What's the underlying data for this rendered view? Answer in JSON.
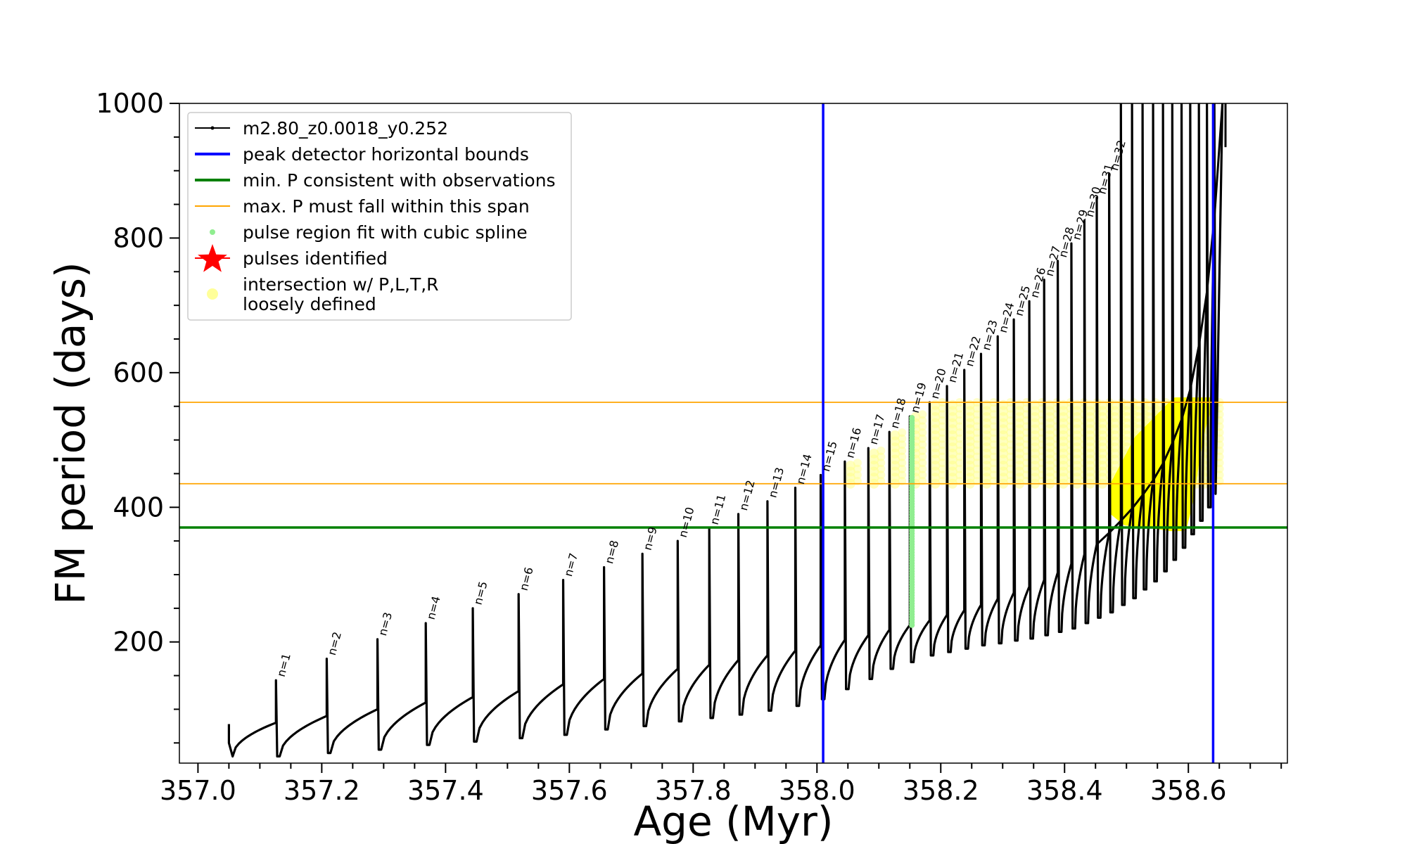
{
  "chart_data": {
    "type": "line",
    "title": "",
    "xlabel": "Age (Myr)",
    "ylabel": "FM period (days)",
    "xlim": [
      356.97,
      358.76
    ],
    "ylim": [
      20,
      1000
    ],
    "x_ticks": [
      357.0,
      357.2,
      357.4,
      357.6,
      357.8,
      358.0,
      358.2,
      358.4,
      358.6
    ],
    "x_tick_labels": [
      "357.0",
      "357.2",
      "357.4",
      "357.6",
      "357.8",
      "358.0",
      "358.2",
      "358.4",
      "358.6"
    ],
    "y_ticks": [
      200,
      400,
      600,
      800,
      1000
    ],
    "y_tick_labels": [
      "200",
      "400",
      "600",
      "800",
      "1000"
    ],
    "grid": false,
    "legend_position": "upper-left",
    "legend": [
      {
        "label": "m2.80_z0.0018_y0.252",
        "kind": "line-marker",
        "color": "#000000"
      },
      {
        "label": "peak detector horizontal bounds",
        "kind": "line",
        "color": "#0000ff"
      },
      {
        "label": "min. P consistent with observations",
        "kind": "line",
        "color": "#008000"
      },
      {
        "label": "max. P must fall within this span",
        "kind": "thin-line",
        "color": "#ffa500"
      },
      {
        "label": "pulse region fit with cubic spline",
        "kind": "dot",
        "color": "#90ee90"
      },
      {
        "label": "pulses identified",
        "kind": "star",
        "color": "#ff0000"
      },
      {
        "label": "intersection w/ P,L,T,R",
        "label2": "loosely defined",
        "kind": "big-dot",
        "color": "#ffff99"
      }
    ],
    "reference_lines": {
      "vertical_blue": [
        358.01,
        358.64
      ],
      "horizontal_green": 370,
      "horizontal_orange": [
        435,
        556
      ]
    },
    "pulse_labels": [
      "n=1",
      "n=2",
      "n=3",
      "n=4",
      "n=5",
      "n=6",
      "n=7",
      "n=8",
      "n=9",
      "n=10",
      "n=11",
      "n=12",
      "n=13",
      "n=14",
      "n=15",
      "n=16",
      "n=17",
      "n=18",
      "n=19",
      "n=20",
      "n=21",
      "n=22",
      "n=23",
      "n=24",
      "n=25",
      "n=26",
      "n=27",
      "n=28",
      "n=29",
      "n=30",
      "n=31",
      "n=32"
    ],
    "pulses": [
      {
        "x": 357.126,
        "base": 80,
        "peak": 143,
        "low": 30
      },
      {
        "x": 357.208,
        "base": 90,
        "peak": 175,
        "low": 35
      },
      {
        "x": 357.29,
        "base": 100,
        "peak": 204,
        "low": 40
      },
      {
        "x": 357.368,
        "base": 110,
        "peak": 228,
        "low": 47
      },
      {
        "x": 357.444,
        "base": 118,
        "peak": 250,
        "low": 52
      },
      {
        "x": 357.518,
        "base": 127,
        "peak": 271,
        "low": 57
      },
      {
        "x": 357.59,
        "base": 137,
        "peak": 292,
        "low": 62
      },
      {
        "x": 357.656,
        "base": 145,
        "peak": 311,
        "low": 70
      },
      {
        "x": 357.718,
        "base": 153,
        "peak": 331,
        "low": 75
      },
      {
        "x": 357.775,
        "base": 160,
        "peak": 350,
        "low": 82
      },
      {
        "x": 357.826,
        "base": 166,
        "peak": 369,
        "low": 87
      },
      {
        "x": 357.873,
        "base": 173,
        "peak": 390,
        "low": 92
      },
      {
        "x": 357.92,
        "base": 180,
        "peak": 409,
        "low": 98
      },
      {
        "x": 357.965,
        "base": 187,
        "peak": 429,
        "low": 105
      },
      {
        "x": 358.006,
        "base": 195,
        "peak": 448,
        "low": 115
      },
      {
        "x": 358.045,
        "base": 203,
        "peak": 468,
        "low": 130
      },
      {
        "x": 358.083,
        "base": 210,
        "peak": 488,
        "low": 145
      },
      {
        "x": 358.117,
        "base": 218,
        "peak": 512,
        "low": 160
      },
      {
        "x": 358.15,
        "base": 225,
        "peak": 535,
        "low": 170
      },
      {
        "x": 358.182,
        "base": 232,
        "peak": 556,
        "low": 180
      },
      {
        "x": 358.21,
        "base": 240,
        "peak": 580,
        "low": 185
      },
      {
        "x": 358.238,
        "base": 247,
        "peak": 604,
        "low": 190
      },
      {
        "x": 358.265,
        "base": 255,
        "peak": 628,
        "low": 195
      },
      {
        "x": 358.292,
        "base": 264,
        "peak": 654,
        "low": 198
      },
      {
        "x": 358.318,
        "base": 273,
        "peak": 679,
        "low": 202
      },
      {
        "x": 358.343,
        "base": 282,
        "peak": 706,
        "low": 205
      },
      {
        "x": 358.367,
        "base": 292,
        "peak": 738,
        "low": 210
      },
      {
        "x": 358.389,
        "base": 303,
        "peak": 766,
        "low": 215
      },
      {
        "x": 358.411,
        "base": 316,
        "peak": 792,
        "low": 220
      },
      {
        "x": 358.432,
        "base": 330,
        "peak": 826,
        "low": 228
      },
      {
        "x": 358.452,
        "base": 345,
        "peak": 860,
        "low": 236
      },
      {
        "x": 358.472,
        "base": 362,
        "peak": 895,
        "low": 244
      },
      {
        "x": 358.491,
        "base": 380,
        "peak": 1000,
        "low": 255
      },
      {
        "x": 358.509,
        "base": 398,
        "peak": 1000,
        "low": 265
      },
      {
        "x": 358.526,
        "base": 418,
        "peak": 1000,
        "low": 278
      },
      {
        "x": 358.543,
        "base": 440,
        "peak": 1000,
        "low": 290
      },
      {
        "x": 358.559,
        "base": 465,
        "peak": 1000,
        "low": 305
      },
      {
        "x": 358.574,
        "base": 495,
        "peak": 1000,
        "low": 322
      },
      {
        "x": 358.589,
        "base": 530,
        "peak": 1000,
        "low": 340
      },
      {
        "x": 358.603,
        "base": 575,
        "peak": 1000,
        "low": 360
      },
      {
        "x": 358.617,
        "base": 640,
        "peak": 1000,
        "low": 380
      },
      {
        "x": 358.63,
        "base": 720,
        "peak": 1000,
        "low": 400
      },
      {
        "x": 358.642,
        "base": 830,
        "peak": 1000,
        "low": 420
      }
    ],
    "series_start": {
      "x": 357.05,
      "y": 78
    },
    "series_end": {
      "x": 358.66,
      "top": 1000,
      "bottom": 935
    },
    "spline_pulse_x": 358.15,
    "spline_pulse_range": [
      225,
      535
    ],
    "yellow_region": {
      "x_range": [
        358.04,
        358.64
      ],
      "y_range": [
        435,
        556
      ]
    },
    "yellow_steep_ramp": [
      [
        358.48,
        395
      ],
      [
        358.5,
        380
      ],
      [
        358.53,
        378
      ],
      [
        358.55,
        375
      ],
      [
        358.57,
        372
      ],
      [
        358.59,
        372
      ],
      [
        358.6,
        410
      ],
      [
        358.61,
        470
      ],
      [
        358.62,
        520
      ],
      [
        358.63,
        548
      ]
    ]
  }
}
